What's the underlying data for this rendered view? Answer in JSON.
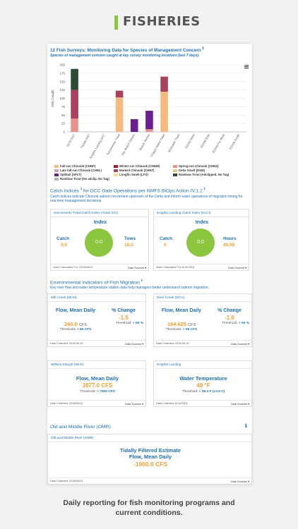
{
  "banner": {
    "title": "FISHERIES",
    "accent": "#8dc63f"
  },
  "survey": {
    "title": "12 Fish Surveys: Monitoring Data for Species of Management Concern",
    "subtitle": "Species of management concern caught at key survey monitoring locations (last 7 days)."
  },
  "chart_data": {
    "type": "bar",
    "stacked": true,
    "ylabel": "Fish Caught",
    "ylim": [
      0,
      200
    ],
    "yticks": [
      0,
      25,
      50,
      75,
      100,
      125,
      150,
      175,
      200
    ],
    "categories": [
      "GCID RST",
      "Tisdale RST",
      "Knights Landing RST",
      "Sacramento Trawl",
      "Sac Beach Seines",
      "Beach Seines",
      "Chipps Island Trawl",
      "Mossdale Trawl",
      "EDSM West",
      "EDSM East",
      "EDSM Far West",
      "EDSM South"
    ],
    "series": [
      {
        "name": "Fall-run Chinook (CHNF)",
        "color": "#f5ba80",
        "values": [
          0,
          0,
          0,
          103,
          0,
          0,
          120,
          0,
          0,
          0,
          0,
          0
        ]
      },
      {
        "name": "Winter-run Chinook (CHNW)",
        "color": "#a31b2a",
        "values": [
          0,
          0,
          0,
          0,
          0,
          0,
          0,
          0,
          0,
          0,
          0,
          0
        ]
      },
      {
        "name": "Spring-run Chinook (CHNS)",
        "color": "#e7938c",
        "values": [
          40,
          0,
          0,
          0,
          0,
          8,
          0,
          0,
          0,
          0,
          0,
          0
        ]
      },
      {
        "name": "Late fall-run Chinook (CHNL)",
        "color": "#d4a0b6",
        "values": [
          0,
          0,
          0,
          0,
          0,
          0,
          0,
          0,
          0,
          0,
          0,
          0
        ]
      },
      {
        "name": "Marked Chinook (CHNT)",
        "color": "#a8425d",
        "values": [
          85,
          0,
          0,
          20,
          0,
          0,
          45,
          0,
          0,
          0,
          0,
          0
        ]
      },
      {
        "name": "Delta Smelt (DSM)",
        "color": "#e8c98f",
        "values": [
          0,
          0,
          0,
          0,
          0,
          0,
          0,
          0,
          0,
          0,
          0,
          0
        ]
      },
      {
        "name": "Splittail (SPLT)",
        "color": "#6a1e8f",
        "values": [
          0,
          0,
          0,
          0,
          38,
          55,
          0,
          0,
          0,
          0,
          0,
          0
        ]
      },
      {
        "name": "Longfin Smelt (LFS)",
        "color": "#f3dc8f",
        "values": [
          0,
          0,
          0,
          0,
          0,
          0,
          0,
          0,
          0,
          0,
          0,
          0
        ]
      },
      {
        "name": "Rainbow Trout (Adclipped, No Tag)",
        "color": "#2d4a35",
        "values": [
          63,
          0,
          0,
          0,
          0,
          0,
          0,
          0,
          0,
          0,
          0,
          0
        ]
      },
      {
        "name": "Rainbow Trout (No adclip, No Tag)",
        "color": "#b3b3b3",
        "values": [
          0,
          0,
          0,
          0,
          0,
          0,
          0,
          0,
          0,
          0,
          0,
          0
        ]
      }
    ]
  },
  "catch_indices": {
    "title": "Catch Indices",
    "title_suffix": "for DCC Gate Operations per NMFS BiOps Action IV.1.2",
    "desc": "Catch indices indicate Chinook salmon movement upstream of the Delta and inform water operations of migration timing for real-time management decisions.",
    "cards": [
      {
        "header": "Sacramento Trawl Catch Index (Trawl SCI)",
        "index_label": "Index",
        "left_label": "Catch",
        "left_value": "0.0",
        "right_label": "Tows",
        "right_value": "10.0",
        "circle_value": "0.0",
        "footer": "Index Calculated For: 2018/06/14",
        "sources": "Data Sources"
      },
      {
        "header": "Knights Landing Catch Index (KLCI)",
        "index_label": "Index",
        "left_label": "Catch",
        "left_value": "0",
        "right_label": "Hours",
        "right_value": "45.98",
        "circle_value": "0.0",
        "footer": "Index Calculated For: 6/14/2018",
        "sources": "Data Sources"
      }
    ]
  },
  "env": {
    "title": "Environmental Indicators of Fish Migration",
    "desc": "Key river flow and water temperature station data help managers better understand salmon migration.",
    "cards": [
      {
        "header": "Mill Creek (MLM)",
        "flow_label": "Flow, Mean Daily",
        "flow_value": "260.0",
        "flow_unit": "CFS",
        "threshold_label": "Threshold:",
        "threshold_value": "> 95 CFS",
        "pct_label": "% Change",
        "pct_value": "-1.5",
        "pct_threshold_label": "Threshold:",
        "pct_threshold_value": "> 50 %",
        "footer": "Data Collected: 2018-06-15",
        "sources": "Data Sources"
      },
      {
        "header": "Deer Creek (DCV)",
        "flow_label": "Flow, Mean Daily",
        "flow_value": "194.625",
        "flow_unit": "CFS",
        "threshold_label": "Threshold:",
        "threshold_value": "> 95 CFS",
        "pct_label": "% Change",
        "pct_value": "-1.6",
        "pct_threshold_label": "Threshold:",
        "pct_threshold_value": "> 50 %",
        "footer": "Data Collected: 2018-06-15",
        "sources": "Data Sources"
      }
    ],
    "wilkins": {
      "header": "Wilkins Slough (WLK)",
      "flow_label": "Flow, Mean Daily",
      "flow_value": "3877.0",
      "flow_unit": "CFS",
      "threshold_label": "Threshold:",
      "threshold_value": "> 7500 CFS",
      "footer": "Data Collected: 2018/06/15",
      "sources": "Data Sources"
    },
    "knights": {
      "header": "Knights Landing",
      "temp_label": "Water Temperature",
      "temp_value": "48",
      "temp_unit": "°F",
      "threshold_label": "Threshold:",
      "threshold_value": "< 56.3 F (13.5 C)",
      "footer": "Data Collected: 6/14/2018",
      "sources": "Data Sources"
    }
  },
  "omr": {
    "section_title": "Old and Middle River (OMR)",
    "card_header": "Old and Middle River (OMR)",
    "label_line1": "Tidally Filtered Estimate",
    "label_line2": "Flow, Mean Daily",
    "value": "-1900.0",
    "unit": "CFS",
    "footer": "Data Collected: 2018/06/15",
    "sources": "Data Sources"
  },
  "caption": {
    "line1": "Daily reporting for fish monitoring programs and",
    "line2": "current conditions."
  }
}
